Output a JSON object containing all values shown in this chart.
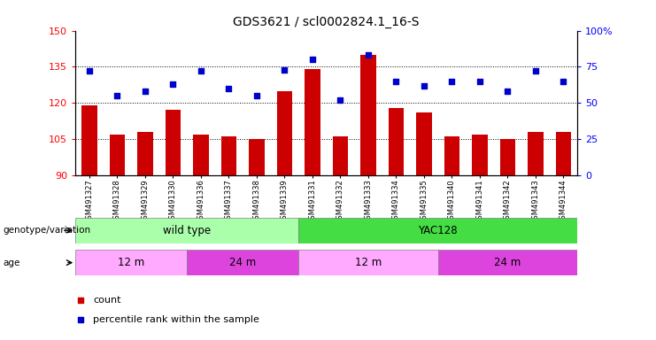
{
  "title": "GDS3621 / scl0002824.1_16-S",
  "samples": [
    "GSM491327",
    "GSM491328",
    "GSM491329",
    "GSM491330",
    "GSM491336",
    "GSM491337",
    "GSM491338",
    "GSM491339",
    "GSM491331",
    "GSM491332",
    "GSM491333",
    "GSM491334",
    "GSM491335",
    "GSM491340",
    "GSM491341",
    "GSM491342",
    "GSM491343",
    "GSM491344"
  ],
  "counts": [
    119,
    107,
    108,
    117,
    107,
    106,
    105,
    125,
    134,
    106,
    140,
    118,
    116,
    106,
    107,
    105,
    108,
    108
  ],
  "percentiles": [
    72,
    55,
    58,
    63,
    72,
    60,
    55,
    73,
    80,
    52,
    83,
    65,
    62,
    65,
    65,
    58,
    72,
    65
  ],
  "ylim_left": [
    90,
    150
  ],
  "ylim_right": [
    0,
    100
  ],
  "yticks_left": [
    90,
    105,
    120,
    135,
    150
  ],
  "yticks_right": [
    0,
    25,
    50,
    75,
    100
  ],
  "bar_color": "#cc0000",
  "dot_color": "#0000cc",
  "genotype_groups": [
    {
      "label": "wild type",
      "start": 0,
      "end": 8,
      "color": "#aaffaa"
    },
    {
      "label": "YAC128",
      "start": 8,
      "end": 18,
      "color": "#44dd44"
    }
  ],
  "age_groups": [
    {
      "label": "12 m",
      "start": 0,
      "end": 4,
      "color": "#ffaaff"
    },
    {
      "label": "24 m",
      "start": 4,
      "end": 8,
      "color": "#dd44dd"
    },
    {
      "label": "12 m",
      "start": 8,
      "end": 13,
      "color": "#ffaaff"
    },
    {
      "label": "24 m",
      "start": 13,
      "end": 18,
      "color": "#dd44dd"
    }
  ],
  "hlines": [
    105,
    120,
    135
  ],
  "bg_color": "#ffffff",
  "right_tick_labels": [
    "0",
    "25",
    "50",
    "75",
    "100%"
  ]
}
